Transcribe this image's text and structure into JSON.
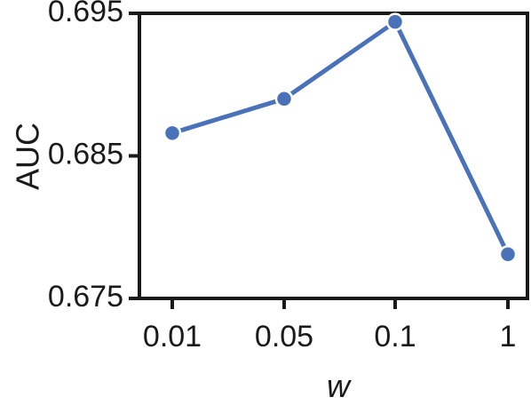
{
  "chart_data": {
    "type": "line",
    "title": "",
    "xlabel": "w",
    "ylabel": "AUC",
    "categories": [
      "0.01",
      "0.05",
      "0.1",
      "1"
    ],
    "series": [
      {
        "values": [
          0.6866,
          0.689,
          0.6944,
          0.6781
        ]
      }
    ],
    "yticks": [
      "0.675",
      "0.685",
      "0.695"
    ],
    "ylim": [
      0.675,
      0.695
    ],
    "grid": false,
    "legend": "none",
    "colors": {
      "line": "#4a72b8",
      "axis": "#1a1a1a"
    }
  }
}
